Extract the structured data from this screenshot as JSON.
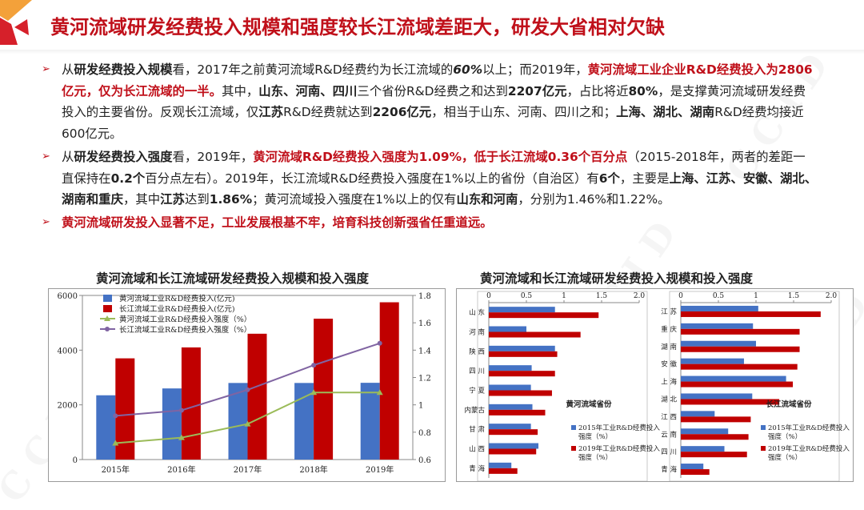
{
  "header": {
    "title": "黄河流域研发经费投入规模和强度较长江流域差距大，研发大省相对欠缺",
    "brand_colors": {
      "accent": "#c0101a",
      "logo_orange": "#f3a13a",
      "logo_red": "#d6202a"
    }
  },
  "bullets": [
    {
      "segments": [
        {
          "t": "从",
          "s": "n"
        },
        {
          "t": "研发经费投入规模",
          "s": "b"
        },
        {
          "t": "看，2017年之前黄河流域R&D经费约为长江流域的",
          "s": "n"
        },
        {
          "t": "60%",
          "s": "i"
        },
        {
          "t": "以上；而2019年，",
          "s": "n"
        },
        {
          "t": "黄河流域工业企业R&D经费投入为2806亿元，仅为长江流域的一半。",
          "s": "r"
        },
        {
          "t": "其中，",
          "s": "n"
        },
        {
          "t": "山东、河南、四川",
          "s": "b"
        },
        {
          "t": "三个省份R&D经费之和达到",
          "s": "n"
        },
        {
          "t": "2207亿元",
          "s": "b"
        },
        {
          "t": "，占比将近",
          "s": "n"
        },
        {
          "t": "80%",
          "s": "b"
        },
        {
          "t": "，是支撑黄河流域研发经费投入的主要省份。反观长江流域，仅",
          "s": "n"
        },
        {
          "t": "江苏",
          "s": "b"
        },
        {
          "t": "R&D经费就达到",
          "s": "n"
        },
        {
          "t": "2206亿元",
          "s": "b"
        },
        {
          "t": "，相当于山东、河南、四川之和；",
          "s": "n"
        },
        {
          "t": "上海、湖北、湖南",
          "s": "b"
        },
        {
          "t": "R&D经费均接近600亿元。",
          "s": "n"
        }
      ]
    },
    {
      "segments": [
        {
          "t": "从",
          "s": "n"
        },
        {
          "t": "研发经费投入强度",
          "s": "b"
        },
        {
          "t": "看，2019年，",
          "s": "n"
        },
        {
          "t": "黄河流域R&D经费投入强度为1.09%，低于长江流域0.36个百分点",
          "s": "r"
        },
        {
          "t": "（2015-2018年，两者的差距一直保持在",
          "s": "n"
        },
        {
          "t": "0.2个",
          "s": "b"
        },
        {
          "t": "百分点左右）。2019年，长江流域R&D经费投入强度在1%以上的省份（自治区）有",
          "s": "n"
        },
        {
          "t": "6个",
          "s": "b"
        },
        {
          "t": "，主要是",
          "s": "n"
        },
        {
          "t": "上海、江苏、安徽、湖北、湖南和重庆",
          "s": "b"
        },
        {
          "t": "，其中",
          "s": "n"
        },
        {
          "t": "江苏",
          "s": "b"
        },
        {
          "t": "达到",
          "s": "n"
        },
        {
          "t": "1.86%",
          "s": "b"
        },
        {
          "t": "；黄河流域投入强度在1%以上的仅有",
          "s": "n"
        },
        {
          "t": "山东和河南",
          "s": "b"
        },
        {
          "t": "，分别为1.46%和1.22%。",
          "s": "n"
        }
      ]
    },
    {
      "segments": [
        {
          "t": "黄河流域研发投入显著不足，工业发展根基不牢，培育科技创新强省任重道远。",
          "s": "r"
        }
      ]
    }
  ],
  "chart_data": [
    {
      "type": "bar",
      "title": "黄河流域和长江流域研发经费投入规模和投入强度",
      "categories": [
        "2015年",
        "2016年",
        "2017年",
        "2018年",
        "2019年"
      ],
      "series": [
        {
          "name": "黄河流域工业R&D经费投入(亿元)",
          "kind": "bar",
          "axis": "left",
          "color": "#4472c4",
          "values": [
            2350,
            2600,
            2800,
            2800,
            2806
          ]
        },
        {
          "name": "长江流域工业R&D经费投入(亿元)",
          "kind": "bar",
          "axis": "left",
          "color": "#c00000",
          "values": [
            3700,
            4100,
            4600,
            5150,
            5750
          ]
        },
        {
          "name": "黄河流域工业R&D经费投入强度（%）",
          "kind": "line",
          "axis": "right",
          "color": "#9bbb59",
          "values": [
            0.72,
            0.76,
            0.86,
            1.09,
            1.09
          ]
        },
        {
          "name": "长江流域工业R&D经费投入强度（%）",
          "kind": "line",
          "axis": "right",
          "color": "#8064a2",
          "values": [
            0.92,
            0.96,
            1.11,
            1.29,
            1.45
          ]
        }
      ],
      "left_axis": {
        "ylim": [
          0,
          6000
        ],
        "ticks": [
          "0",
          "2000",
          "4000",
          "6000"
        ]
      },
      "right_axis": {
        "ylim": [
          0.6,
          1.8
        ],
        "ticks": [
          "0.6",
          "0.8",
          "1",
          "1.2",
          "1.4",
          "1.6",
          "1.8"
        ]
      },
      "grid": false,
      "legend_position": "top-left"
    },
    {
      "type": "bar",
      "orientation": "horizontal",
      "title": "黄河流域和长江流域研发经费投入规模和投入强度",
      "xlim": [
        0,
        2.0
      ],
      "x_ticks": [
        "0",
        "0.5",
        "1",
        "1.5",
        "2.0"
      ],
      "panels": [
        {
          "label": "黄河流域省份",
          "categories": [
            "山 东",
            "河 南",
            "陕 西",
            "四 川",
            "宁 夏",
            "内蒙古",
            "甘 肃",
            "山 西",
            "青 海"
          ],
          "series": [
            {
              "name": "2015年工业R&D经费投入强度（%）",
              "color": "#4472c4",
              "values": [
                0.88,
                0.5,
                0.88,
                0.57,
                0.56,
                0.58,
                0.56,
                0.66,
                0.3
              ]
            },
            {
              "name": "2019年工业R&D经费投入强度（%）",
              "color": "#c00000",
              "values": [
                1.46,
                1.22,
                0.91,
                0.88,
                0.84,
                0.75,
                0.65,
                0.63,
                0.38
              ]
            }
          ]
        },
        {
          "label": "长江流域省份",
          "categories": [
            "江 苏",
            "重 庆",
            "湖 南",
            "安 徽",
            "上 海",
            "湖 北",
            "江 西",
            "云 南",
            "四 川",
            "青 海"
          ],
          "series": [
            {
              "name": "2015年工业R&D经费投入强度（%）",
              "color": "#4472c4",
              "values": [
                1.03,
                0.96,
                1.0,
                0.84,
                1.4,
                0.95,
                0.45,
                0.63,
                0.58,
                0.3
              ]
            },
            {
              "name": "2019年工业R&D经费投入强度（%）",
              "color": "#c00000",
              "values": [
                1.86,
                1.58,
                1.58,
                1.55,
                1.49,
                1.31,
                0.93,
                0.9,
                0.88,
                0.38
              ]
            }
          ]
        }
      ],
      "legend_position": "bottom-right"
    }
  ]
}
